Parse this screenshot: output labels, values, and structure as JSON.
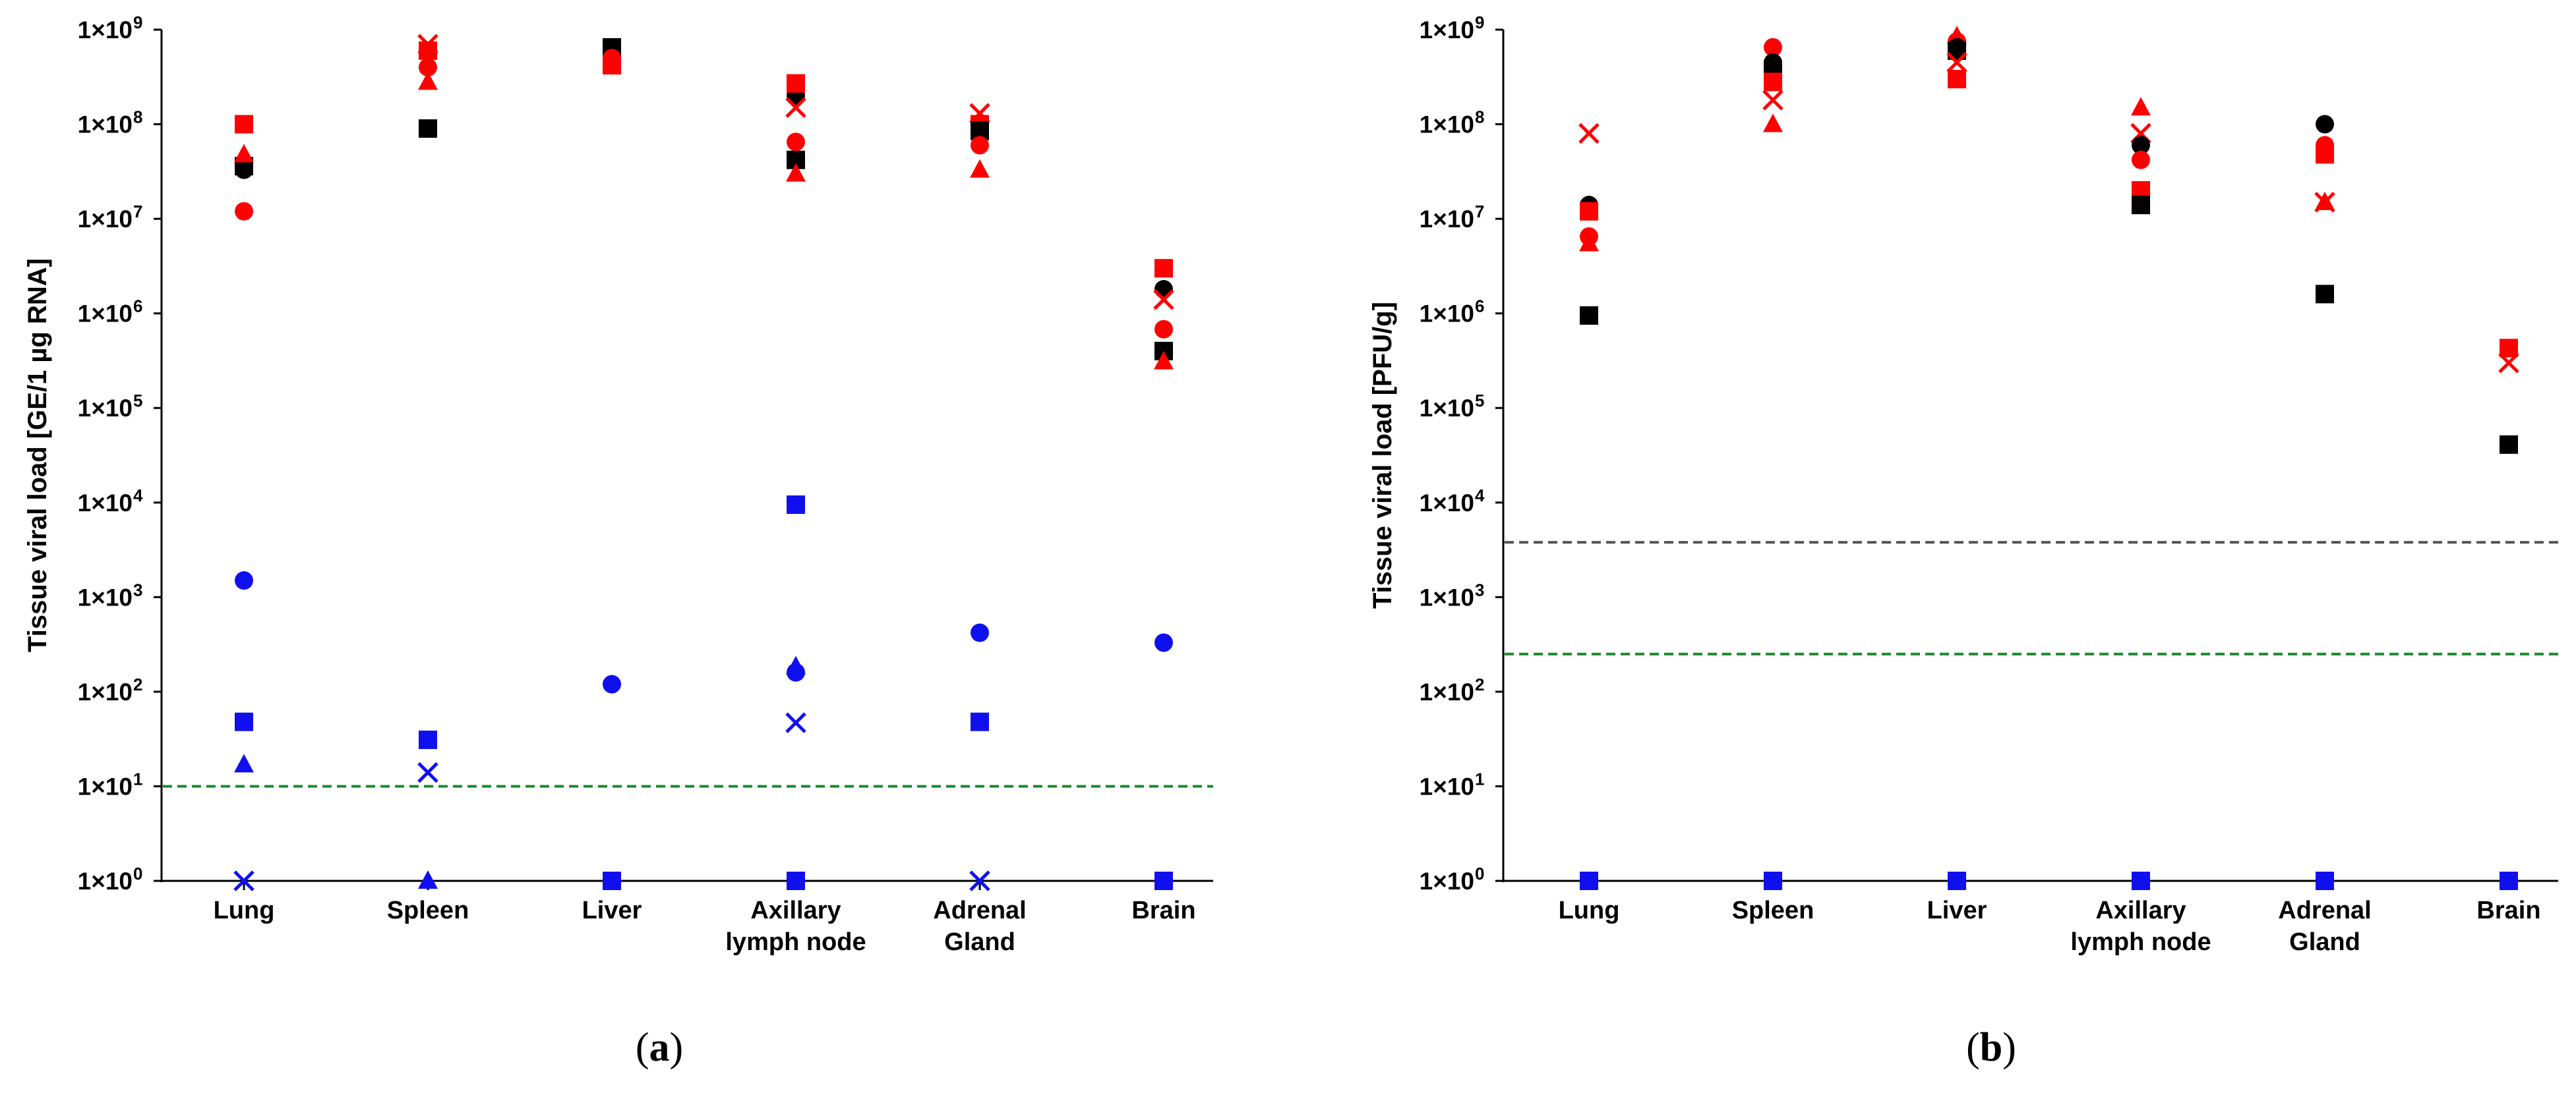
{
  "colors": {
    "black": "#000000",
    "red": "#ff0000",
    "blue": "#1010ee",
    "green_line": "#1a8a2a",
    "gray_line": "#555555"
  },
  "chart_data": [
    {
      "type": "scatter",
      "panel": "a",
      "panel_label": {
        "open": "(",
        "letter": "a",
        "close": ")"
      },
      "ylabel": "Tissue viral load [GE/1 µg RNA]",
      "yscale": "log",
      "ylim": [
        1,
        1000000000
      ],
      "yticks": [
        {
          "exp": 0,
          "label": "1×10",
          "sup": "0"
        },
        {
          "exp": 1,
          "label": "1×10",
          "sup": "1"
        },
        {
          "exp": 2,
          "label": "1×10",
          "sup": "2"
        },
        {
          "exp": 3,
          "label": "1×10",
          "sup": "3"
        },
        {
          "exp": 4,
          "label": "1×10",
          "sup": "4"
        },
        {
          "exp": 5,
          "label": "1×10",
          "sup": "5"
        },
        {
          "exp": 6,
          "label": "1×10",
          "sup": "6"
        },
        {
          "exp": 7,
          "label": "1×10",
          "sup": "7"
        },
        {
          "exp": 8,
          "label": "1×10",
          "sup": "8"
        },
        {
          "exp": 9,
          "label": "1×10",
          "sup": "9"
        }
      ],
      "categories": [
        [
          "Lung"
        ],
        [
          "Spleen"
        ],
        [
          "Liver"
        ],
        [
          "Axillary",
          "lymph node"
        ],
        [
          "Adrenal",
          "Gland"
        ],
        [
          "Brain"
        ]
      ],
      "hlines": [
        {
          "value": 10,
          "color": "green_line"
        }
      ],
      "points": [
        {
          "cat": 0,
          "value": 33000000,
          "color": "black",
          "marker": "circle"
        },
        {
          "cat": 0,
          "value": 36000000,
          "color": "black",
          "marker": "square"
        },
        {
          "cat": 0,
          "value": 100000000,
          "color": "red",
          "marker": "square"
        },
        {
          "cat": 0,
          "value": 48000000,
          "color": "red",
          "marker": "triangle"
        },
        {
          "cat": 0,
          "value": 12000000,
          "color": "red",
          "marker": "circle"
        },
        {
          "cat": 0,
          "value": 1500,
          "color": "blue",
          "marker": "circle"
        },
        {
          "cat": 0,
          "value": 48,
          "color": "blue",
          "marker": "square"
        },
        {
          "cat": 0,
          "value": 17,
          "color": "blue",
          "marker": "triangle"
        },
        {
          "cat": 0,
          "value": 1,
          "color": "blue",
          "marker": "x"
        },
        {
          "cat": 1,
          "value": 90000000,
          "color": "black",
          "marker": "square"
        },
        {
          "cat": 1,
          "value": 700000000,
          "color": "red",
          "marker": "x"
        },
        {
          "cat": 1,
          "value": 600000000,
          "color": "red",
          "marker": "square"
        },
        {
          "cat": 1,
          "value": 400000000,
          "color": "red",
          "marker": "circle"
        },
        {
          "cat": 1,
          "value": 280000000,
          "color": "red",
          "marker": "triangle"
        },
        {
          "cat": 1,
          "value": 31,
          "color": "blue",
          "marker": "square"
        },
        {
          "cat": 1,
          "value": 14,
          "color": "blue",
          "marker": "x"
        },
        {
          "cat": 1,
          "value": 1,
          "color": "blue",
          "marker": "triangle"
        },
        {
          "cat": 2,
          "value": 650000000,
          "color": "black",
          "marker": "square"
        },
        {
          "cat": 2,
          "value": 600000000,
          "color": "black",
          "marker": "circle"
        },
        {
          "cat": 2,
          "value": 420000000,
          "color": "red",
          "marker": "square"
        },
        {
          "cat": 2,
          "value": 500000000,
          "color": "red",
          "marker": "circle"
        },
        {
          "cat": 2,
          "value": 120,
          "color": "blue",
          "marker": "circle"
        },
        {
          "cat": 2,
          "value": 1,
          "color": "blue",
          "marker": "square"
        },
        {
          "cat": 3,
          "value": 200000000,
          "color": "black",
          "marker": "circle"
        },
        {
          "cat": 3,
          "value": 42000000,
          "color": "black",
          "marker": "square"
        },
        {
          "cat": 3,
          "value": 270000000,
          "color": "red",
          "marker": "square"
        },
        {
          "cat": 3,
          "value": 150000000,
          "color": "red",
          "marker": "x"
        },
        {
          "cat": 3,
          "value": 65000000,
          "color": "red",
          "marker": "circle"
        },
        {
          "cat": 3,
          "value": 30000000,
          "color": "red",
          "marker": "triangle"
        },
        {
          "cat": 3,
          "value": 9500,
          "color": "blue",
          "marker": "square"
        },
        {
          "cat": 3,
          "value": 185,
          "color": "blue",
          "marker": "triangle"
        },
        {
          "cat": 3,
          "value": 160,
          "color": "blue",
          "marker": "circle"
        },
        {
          "cat": 3,
          "value": 47,
          "color": "blue",
          "marker": "x"
        },
        {
          "cat": 3,
          "value": 1,
          "color": "blue",
          "marker": "square"
        },
        {
          "cat": 4,
          "value": 130000000,
          "color": "red",
          "marker": "x"
        },
        {
          "cat": 4,
          "value": 100000000,
          "color": "red",
          "marker": "square"
        },
        {
          "cat": 4,
          "value": 85000000,
          "color": "black",
          "marker": "square"
        },
        {
          "cat": 4,
          "value": 60000000,
          "color": "red",
          "marker": "circle"
        },
        {
          "cat": 4,
          "value": 33000000,
          "color": "red",
          "marker": "triangle"
        },
        {
          "cat": 4,
          "value": 420,
          "color": "blue",
          "marker": "circle"
        },
        {
          "cat": 4,
          "value": 48,
          "color": "blue",
          "marker": "square"
        },
        {
          "cat": 4,
          "value": 1,
          "color": "blue",
          "marker": "x"
        },
        {
          "cat": 5,
          "value": 3000000,
          "color": "red",
          "marker": "square"
        },
        {
          "cat": 5,
          "value": 1800000,
          "color": "black",
          "marker": "circle"
        },
        {
          "cat": 5,
          "value": 1400000,
          "color": "red",
          "marker": "x"
        },
        {
          "cat": 5,
          "value": 680000,
          "color": "red",
          "marker": "circle"
        },
        {
          "cat": 5,
          "value": 400000,
          "color": "black",
          "marker": "square"
        },
        {
          "cat": 5,
          "value": 310000,
          "color": "red",
          "marker": "triangle"
        },
        {
          "cat": 5,
          "value": 330,
          "color": "blue",
          "marker": "circle"
        },
        {
          "cat": 5,
          "value": 1,
          "color": "blue",
          "marker": "square"
        }
      ]
    },
    {
      "type": "scatter",
      "panel": "b",
      "panel_label": {
        "open": "(",
        "letter": "b",
        "close": ")"
      },
      "ylabel": "Tissue viral load [PFU/g]",
      "yscale": "log",
      "ylim": [
        1,
        1000000000
      ],
      "yticks": [
        {
          "exp": 0,
          "label": "1×10",
          "sup": "0"
        },
        {
          "exp": 1,
          "label": "1×10",
          "sup": "1"
        },
        {
          "exp": 2,
          "label": "1×10",
          "sup": "2"
        },
        {
          "exp": 3,
          "label": "1×10",
          "sup": "3"
        },
        {
          "exp": 4,
          "label": "1×10",
          "sup": "4"
        },
        {
          "exp": 5,
          "label": "1×10",
          "sup": "5"
        },
        {
          "exp": 6,
          "label": "1×10",
          "sup": "6"
        },
        {
          "exp": 7,
          "label": "1×10",
          "sup": "7"
        },
        {
          "exp": 8,
          "label": "1×10",
          "sup": "8"
        },
        {
          "exp": 9,
          "label": "1×10",
          "sup": "9"
        }
      ],
      "categories": [
        [
          "Lung"
        ],
        [
          "Spleen"
        ],
        [
          "Liver"
        ],
        [
          "Axillary",
          "lymph node"
        ],
        [
          "Adrenal",
          "Gland"
        ],
        [
          "Brain"
        ]
      ],
      "hlines": [
        {
          "value": 3800,
          "color": "gray_line"
        },
        {
          "value": 250,
          "color": "green_line"
        }
      ],
      "points": [
        {
          "cat": 0,
          "value": 80000000,
          "color": "red",
          "marker": "x"
        },
        {
          "cat": 0,
          "value": 14000000,
          "color": "black",
          "marker": "circle"
        },
        {
          "cat": 0,
          "value": 12000000,
          "color": "red",
          "marker": "square"
        },
        {
          "cat": 0,
          "value": 6500000,
          "color": "red",
          "marker": "circle"
        },
        {
          "cat": 0,
          "value": 5500000,
          "color": "red",
          "marker": "triangle"
        },
        {
          "cat": 0,
          "value": 950000,
          "color": "black",
          "marker": "square"
        },
        {
          "cat": 0,
          "value": 1,
          "color": "blue",
          "marker": "square"
        },
        {
          "cat": 1,
          "value": 650000000,
          "color": "red",
          "marker": "circle"
        },
        {
          "cat": 1,
          "value": 450000000,
          "color": "black",
          "marker": "circle"
        },
        {
          "cat": 1,
          "value": 380000000,
          "color": "black",
          "marker": "square"
        },
        {
          "cat": 1,
          "value": 280000000,
          "color": "red",
          "marker": "square"
        },
        {
          "cat": 1,
          "value": 180000000,
          "color": "red",
          "marker": "x"
        },
        {
          "cat": 1,
          "value": 100000000,
          "color": "red",
          "marker": "triangle"
        },
        {
          "cat": 1,
          "value": 1,
          "color": "blue",
          "marker": "square"
        },
        {
          "cat": 2,
          "value": 850000000,
          "color": "red",
          "marker": "triangle"
        },
        {
          "cat": 2,
          "value": 750000000,
          "color": "red",
          "marker": "circle"
        },
        {
          "cat": 2,
          "value": 650000000,
          "color": "black",
          "marker": "circle"
        },
        {
          "cat": 2,
          "value": 600000000,
          "color": "black",
          "marker": "square"
        },
        {
          "cat": 2,
          "value": 450000000,
          "color": "red",
          "marker": "x"
        },
        {
          "cat": 2,
          "value": 300000000,
          "color": "red",
          "marker": "square"
        },
        {
          "cat": 2,
          "value": 1,
          "color": "blue",
          "marker": "square"
        },
        {
          "cat": 3,
          "value": 150000000,
          "color": "red",
          "marker": "triangle"
        },
        {
          "cat": 3,
          "value": 80000000,
          "color": "red",
          "marker": "x"
        },
        {
          "cat": 3,
          "value": 60000000,
          "color": "black",
          "marker": "circle"
        },
        {
          "cat": 3,
          "value": 42000000,
          "color": "red",
          "marker": "circle"
        },
        {
          "cat": 3,
          "value": 20000000,
          "color": "red",
          "marker": "square"
        },
        {
          "cat": 3,
          "value": 14000000,
          "color": "black",
          "marker": "square"
        },
        {
          "cat": 3,
          "value": 1,
          "color": "blue",
          "marker": "square"
        },
        {
          "cat": 4,
          "value": 100000000,
          "color": "black",
          "marker": "circle"
        },
        {
          "cat": 4,
          "value": 60000000,
          "color": "red",
          "marker": "circle"
        },
        {
          "cat": 4,
          "value": 48000000,
          "color": "red",
          "marker": "square"
        },
        {
          "cat": 4,
          "value": 15000000,
          "color": "red",
          "marker": "x"
        },
        {
          "cat": 4,
          "value": 15000000,
          "color": "red",
          "marker": "triangle"
        },
        {
          "cat": 4,
          "value": 1600000,
          "color": "black",
          "marker": "square"
        },
        {
          "cat": 4,
          "value": 1,
          "color": "blue",
          "marker": "square"
        },
        {
          "cat": 5,
          "value": 430000,
          "color": "red",
          "marker": "square"
        },
        {
          "cat": 5,
          "value": 300000,
          "color": "red",
          "marker": "x"
        },
        {
          "cat": 5,
          "value": 41000,
          "color": "black",
          "marker": "square"
        },
        {
          "cat": 5,
          "value": 1,
          "color": "blue",
          "marker": "square"
        }
      ]
    }
  ]
}
